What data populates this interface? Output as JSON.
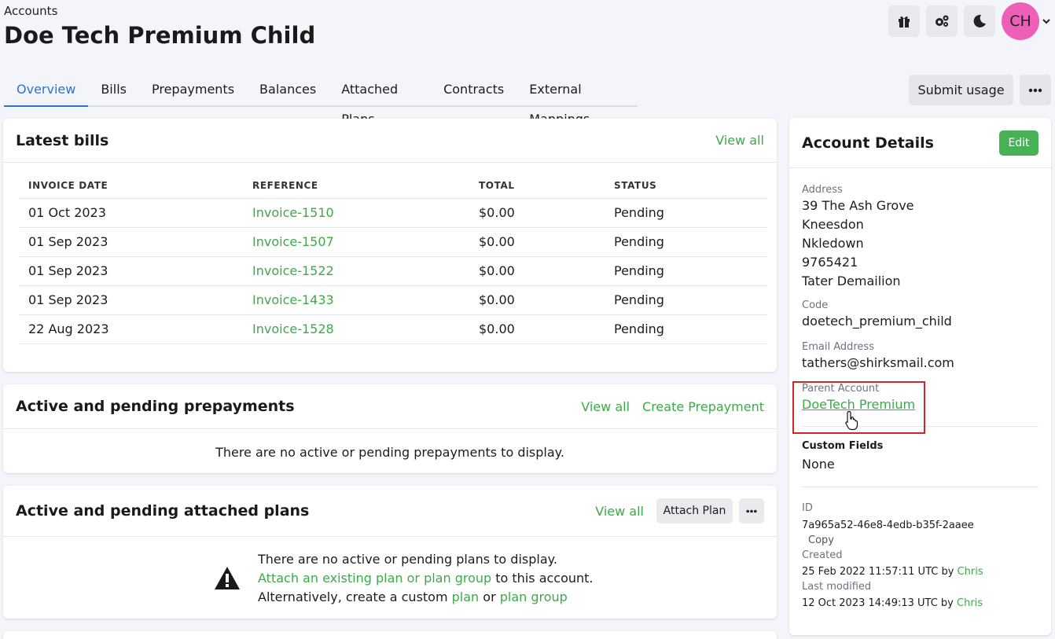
{
  "header": {
    "breadcrumb": "Accounts",
    "title": "Doe Tech Premium Child",
    "avatar_initials": "CH"
  },
  "tabs": [
    {
      "label": "Overview",
      "active": true
    },
    {
      "label": "Bills"
    },
    {
      "label": "Prepayments"
    },
    {
      "label": "Balances"
    },
    {
      "label": "Attached Plans"
    },
    {
      "label": "Contracts"
    },
    {
      "label": "External Mappings"
    }
  ],
  "actions": {
    "submit_usage": "Submit usage"
  },
  "latest_bills": {
    "title": "Latest bills",
    "view_all": "View all",
    "columns": [
      "INVOICE DATE",
      "REFERENCE",
      "TOTAL",
      "STATUS"
    ],
    "rows": [
      {
        "date": "01 Oct 2023",
        "ref": "Invoice-1510",
        "total": "$0.00",
        "status": "Pending"
      },
      {
        "date": "01 Sep 2023",
        "ref": "Invoice-1507",
        "total": "$0.00",
        "status": "Pending"
      },
      {
        "date": "01 Sep 2023",
        "ref": "Invoice-1522",
        "total": "$0.00",
        "status": "Pending"
      },
      {
        "date": "01 Sep 2023",
        "ref": "Invoice-1433",
        "total": "$0.00",
        "status": "Pending"
      },
      {
        "date": "22 Aug 2023",
        "ref": "Invoice-1528",
        "total": "$0.00",
        "status": "Pending"
      }
    ]
  },
  "prepayments": {
    "title": "Active and pending prepayments",
    "view_all": "View all",
    "create": "Create Prepayment",
    "empty": "There are no active or pending prepayments to display."
  },
  "plans": {
    "title": "Active and pending attached plans",
    "view_all": "View all",
    "attach_button": "Attach Plan",
    "empty_line1": "There are no active or pending plans to display.",
    "attach_link": "Attach an existing plan or plan group",
    "attach_suffix": " to this account.",
    "alt_prefix": "Alternatively, create a custom ",
    "plan_link": "plan",
    "or_text": " or ",
    "plan_group_link": "plan group"
  },
  "account_details": {
    "title": "Account Details",
    "edit": "Edit",
    "address_label": "Address",
    "address_lines": [
      "39 The Ash Grove",
      "Kneesdon",
      "Nkledown",
      "9765421",
      "Tater Demailion"
    ],
    "code_label": "Code",
    "code": "doetech_premium_child",
    "email_label": "Email Address",
    "email": "tathers@shirksmail.com",
    "parent_label": "Parent Account",
    "parent": "DoeTech Premium",
    "custom_fields_label": "Custom Fields",
    "custom_fields": "None",
    "id_label": "ID",
    "id": "7a965a52-46e8-4edb-b35f-2aaee",
    "copy": "Copy",
    "created_label": "Created",
    "created": "25 Feb 2022 11:57:11 UTC by ",
    "created_by": "Chris",
    "modified_label": "Last modified",
    "modified": "12 Oct 2023 14:49:13 UTC by ",
    "modified_by": "Chris"
  },
  "colors": {
    "accent_green": "#3daa48",
    "tab_active_blue": "#2f72c8",
    "avatar_pink": "#ee5fb8",
    "highlight_red": "#d6222a"
  },
  "icons": [
    "gift-icon",
    "settings-cogs-icon",
    "moon-icon",
    "chevron-down-icon",
    "more-horizontal-icon",
    "warning-icon",
    "pointer-cursor-icon"
  ]
}
